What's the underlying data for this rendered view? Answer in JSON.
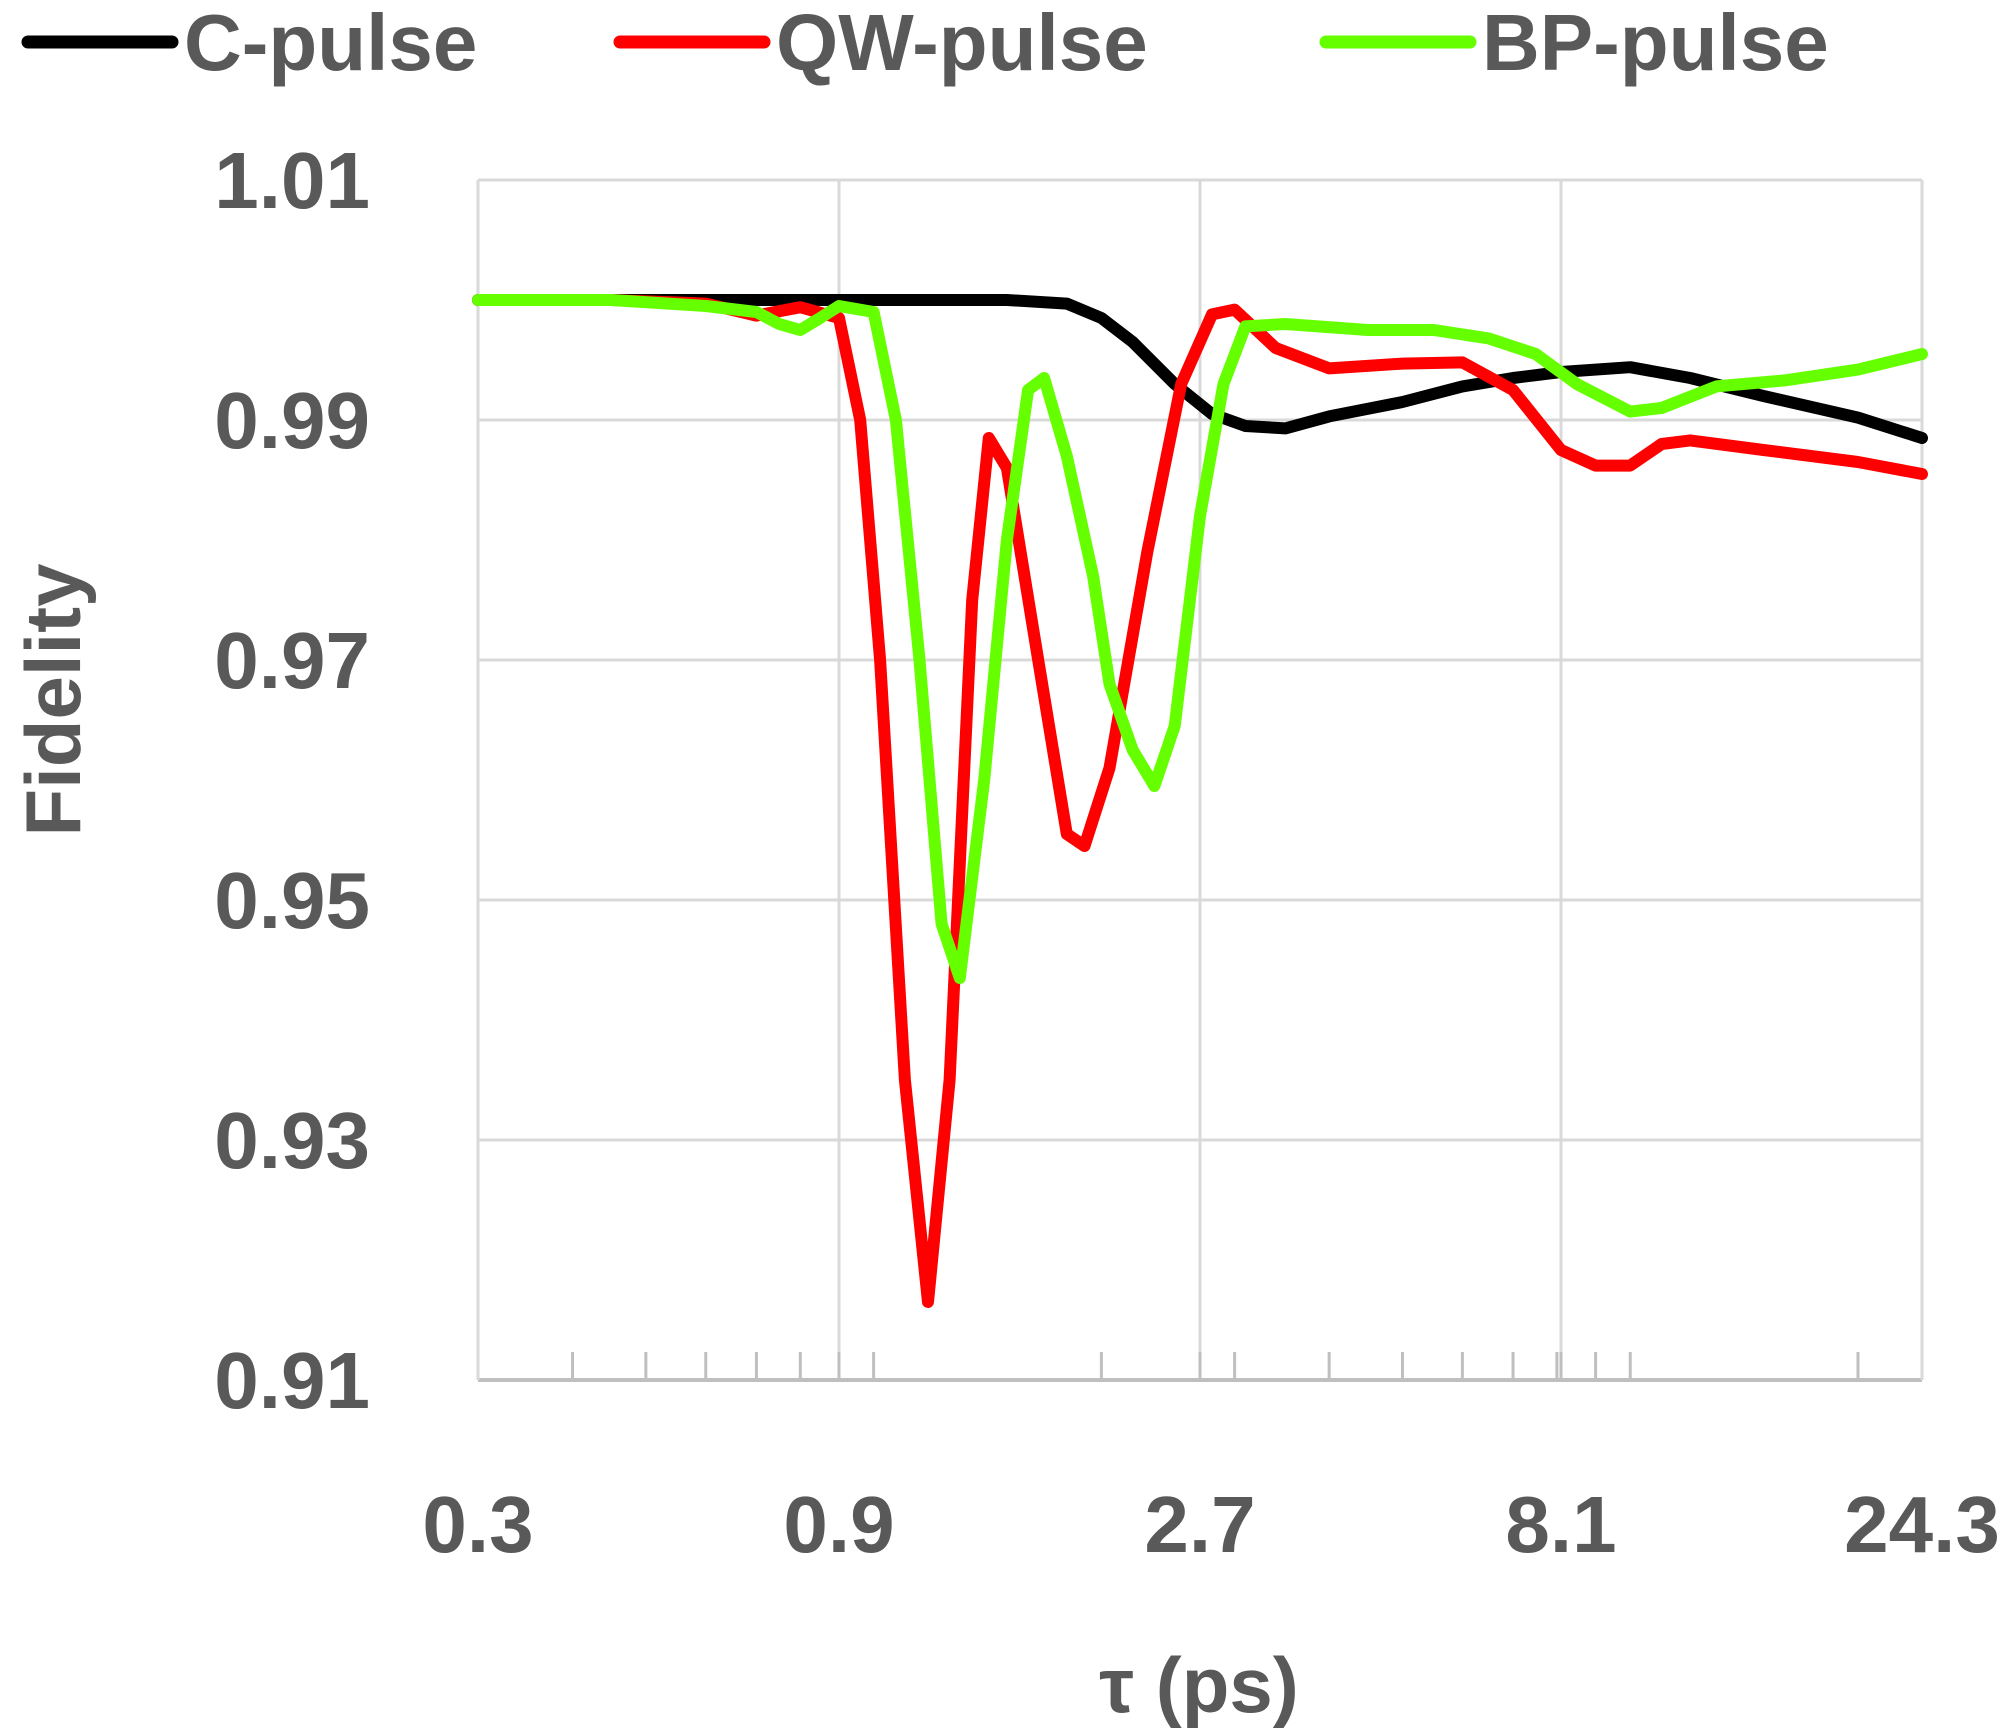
{
  "chart_data": {
    "type": "line",
    "xlabel": "τ (ps)",
    "ylabel": "Fidelity",
    "x_scale": "log",
    "xlim": [
      0.3,
      24.3
    ],
    "ylim": [
      0.91,
      1.01
    ],
    "x_ticks": [
      "0.3",
      "0.9",
      "2.7",
      "8.1",
      "24.3"
    ],
    "y_ticks": [
      "0.91",
      "0.93",
      "0.95",
      "0.97",
      "0.99",
      "1.01"
    ],
    "grid": true,
    "legend_position": "top",
    "series": [
      {
        "name": "C-pulse",
        "color": "#000000",
        "points": [
          [
            0.3,
            1.0
          ],
          [
            0.45,
            1.0
          ],
          [
            0.6,
            1.0
          ],
          [
            0.75,
            1.0
          ],
          [
            0.9,
            1.0
          ],
          [
            1.2,
            1.0
          ],
          [
            1.5,
            1.0
          ],
          [
            1.8,
            0.9997
          ],
          [
            2.0,
            0.9985
          ],
          [
            2.2,
            0.9965
          ],
          [
            2.5,
            0.993
          ],
          [
            2.8,
            0.9905
          ],
          [
            3.1,
            0.9895
          ],
          [
            3.5,
            0.9893
          ],
          [
            4.0,
            0.9903
          ],
          [
            5.0,
            0.9915
          ],
          [
            6.0,
            0.9928
          ],
          [
            7.0,
            0.9935
          ],
          [
            8.1,
            0.994
          ],
          [
            10.0,
            0.9944
          ],
          [
            12.0,
            0.9935
          ],
          [
            15.0,
            0.992
          ],
          [
            20.0,
            0.9902
          ],
          [
            24.3,
            0.9885
          ]
        ]
      },
      {
        "name": "QW-pulse",
        "color": "#ff0000",
        "points": [
          [
            0.3,
            1.0
          ],
          [
            0.45,
            1.0
          ],
          [
            0.6,
            0.9997
          ],
          [
            0.7,
            0.9987
          ],
          [
            0.8,
            0.9994
          ],
          [
            0.9,
            0.9985
          ],
          [
            0.96,
            0.99
          ],
          [
            1.02,
            0.97
          ],
          [
            1.1,
            0.935
          ],
          [
            1.18,
            0.9165
          ],
          [
            1.26,
            0.935
          ],
          [
            1.35,
            0.975
          ],
          [
            1.42,
            0.9885
          ],
          [
            1.5,
            0.986
          ],
          [
            1.65,
            0.97
          ],
          [
            1.8,
            0.9555
          ],
          [
            1.9,
            0.9545
          ],
          [
            2.05,
            0.961
          ],
          [
            2.3,
            0.979
          ],
          [
            2.55,
            0.993
          ],
          [
            2.8,
            0.9988
          ],
          [
            3.0,
            0.9992
          ],
          [
            3.4,
            0.996
          ],
          [
            4.0,
            0.9943
          ],
          [
            5.0,
            0.9947
          ],
          [
            6.0,
            0.9948
          ],
          [
            7.0,
            0.9925
          ],
          [
            8.1,
            0.9875
          ],
          [
            9.0,
            0.9862
          ],
          [
            10.0,
            0.9862
          ],
          [
            11.0,
            0.988
          ],
          [
            12.0,
            0.9883
          ],
          [
            15.0,
            0.9875
          ],
          [
            20.0,
            0.9865
          ],
          [
            24.3,
            0.9855
          ]
        ]
      },
      {
        "name": "BP-pulse",
        "color": "#66ff00",
        "points": [
          [
            0.3,
            1.0
          ],
          [
            0.45,
            1.0
          ],
          [
            0.6,
            0.9995
          ],
          [
            0.7,
            0.999
          ],
          [
            0.75,
            0.998
          ],
          [
            0.8,
            0.9975
          ],
          [
            0.85,
            0.9985
          ],
          [
            0.9,
            0.9995
          ],
          [
            1.0,
            0.999
          ],
          [
            1.07,
            0.99
          ],
          [
            1.15,
            0.97
          ],
          [
            1.23,
            0.948
          ],
          [
            1.3,
            0.9435
          ],
          [
            1.4,
            0.96
          ],
          [
            1.5,
            0.98
          ],
          [
            1.6,
            0.9925
          ],
          [
            1.68,
            0.9935
          ],
          [
            1.8,
            0.987
          ],
          [
            1.95,
            0.977
          ],
          [
            2.05,
            0.968
          ],
          [
            2.2,
            0.9625
          ],
          [
            2.35,
            0.9595
          ],
          [
            2.5,
            0.9645
          ],
          [
            2.7,
            0.982
          ],
          [
            2.9,
            0.993
          ],
          [
            3.1,
            0.9978
          ],
          [
            3.5,
            0.998
          ],
          [
            4.5,
            0.9975
          ],
          [
            5.5,
            0.9975
          ],
          [
            6.5,
            0.9968
          ],
          [
            7.5,
            0.9955
          ],
          [
            8.5,
            0.993
          ],
          [
            10.0,
            0.9907
          ],
          [
            11.0,
            0.991
          ],
          [
            13.0,
            0.9928
          ],
          [
            16.0,
            0.9933
          ],
          [
            20.0,
            0.9942
          ],
          [
            24.3,
            0.9955
          ]
        ]
      }
    ]
  }
}
